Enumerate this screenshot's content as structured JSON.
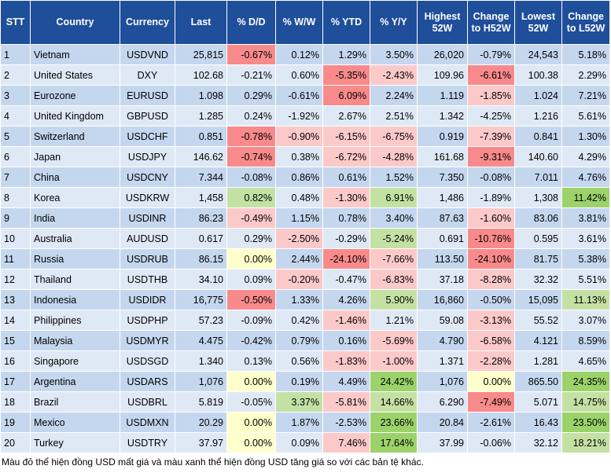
{
  "table": {
    "columns": [
      "STT",
      "Country",
      "Currency",
      "Last",
      "% D/D",
      "% W/W",
      "% YTD",
      "% Y/Y",
      "Highest 52W",
      "Change to H52W",
      "Lowest 52W",
      "Change to L52W"
    ],
    "rows": [
      [
        "1",
        "Vietnam",
        "USDVND",
        "25,815",
        "-0.67%",
        "0.12%",
        "1.29%",
        "3.50%",
        "26,020",
        "-0.79%",
        "24,543",
        "5.18%"
      ],
      [
        "2",
        "United States",
        "DXY",
        "102.68",
        "-0.21%",
        "0.60%",
        "-5.35%",
        "-2.43%",
        "109.96",
        "-6.61%",
        "100.38",
        "2.29%"
      ],
      [
        "3",
        "Eurozone",
        "EURUSD",
        "1.098",
        "0.29%",
        "-0.61%",
        "6.09%",
        "2.24%",
        "1.119",
        "-1.85%",
        "1.024",
        "7.21%"
      ],
      [
        "4",
        "United Kingdom",
        "GBPUSD",
        "1.285",
        "0.24%",
        "-1.92%",
        "2.67%",
        "2.51%",
        "1.342",
        "-4.25%",
        "1.216",
        "5.61%"
      ],
      [
        "5",
        "Switzerland",
        "USDCHF",
        "0.851",
        "-0.78%",
        "-0.90%",
        "-6.15%",
        "-6.75%",
        "0.919",
        "-7.39%",
        "0.841",
        "1.30%"
      ],
      [
        "6",
        "Japan",
        "USDJPY",
        "146.62",
        "-0.74%",
        "0.38%",
        "-6.72%",
        "-4.28%",
        "161.68",
        "-9.31%",
        "140.60",
        "4.29%"
      ],
      [
        "7",
        "China",
        "USDCNY",
        "7.344",
        "-0.08%",
        "0.86%",
        "0.61%",
        "1.52%",
        "7.350",
        "-0.08%",
        "7.011",
        "4.76%"
      ],
      [
        "8",
        "Korea",
        "USDKRW",
        "1,458",
        "0.82%",
        "0.48%",
        "-1.30%",
        "6.91%",
        "1,486",
        "-1.89%",
        "1,308",
        "11.42%"
      ],
      [
        "9",
        "India",
        "USDINR",
        "86.23",
        "-0.49%",
        "1.15%",
        "0.78%",
        "3.40%",
        "87.63",
        "-1.60%",
        "83.06",
        "3.81%"
      ],
      [
        "10",
        "Australia",
        "AUDUSD",
        "0.617",
        "0.29%",
        "-2.50%",
        "-0.29%",
        "-5.24%",
        "0.691",
        "-10.76%",
        "0.595",
        "3.61%"
      ],
      [
        "11",
        "Russia",
        "USDRUB",
        "86.15",
        "0.00%",
        "2.44%",
        "-24.10%",
        "-7.66%",
        "113.50",
        "-24.10%",
        "81.75",
        "5.38%"
      ],
      [
        "12",
        "Thailand",
        "USDTHB",
        "34.10",
        "0.09%",
        "-0.20%",
        "-0.47%",
        "-6.83%",
        "37.18",
        "-8.28%",
        "32.32",
        "5.51%"
      ],
      [
        "13",
        "Indonesia",
        "USDIDR",
        "16,775",
        "-0.50%",
        "1.33%",
        "4.26%",
        "5.90%",
        "16,860",
        "-0.50%",
        "15,095",
        "11.13%"
      ],
      [
        "14",
        "Philippines",
        "USDPHP",
        "57.23",
        "-0.09%",
        "0.42%",
        "-1.46%",
        "1.21%",
        "59.08",
        "-3.13%",
        "55.52",
        "3.07%"
      ],
      [
        "15",
        "Malaysia",
        "USDMYR",
        "4.475",
        "-0.42%",
        "0.79%",
        "0.16%",
        "-5.69%",
        "4.790",
        "-6.58%",
        "4.121",
        "8.59%"
      ],
      [
        "16",
        "Singapore",
        "USDSGD",
        "1.340",
        "0.13%",
        "0.56%",
        "-1.83%",
        "-1.00%",
        "1.371",
        "-2.28%",
        "1.281",
        "4.65%"
      ],
      [
        "17",
        "Argentina",
        "USDARS",
        "1,076",
        "0.00%",
        "0.19%",
        "4.49%",
        "24.42%",
        "1,076",
        "0.00%",
        "865.50",
        "24.35%"
      ],
      [
        "18",
        "Brazil",
        "USDBRL",
        "5.819",
        "-0.05%",
        "3.37%",
        "-5.81%",
        "14.66%",
        "6.290",
        "-7.49%",
        "5.071",
        "14.75%"
      ],
      [
        "19",
        "Mexico",
        "USDMXN",
        "20.29",
        "0.00%",
        "1.87%",
        "-2.53%",
        "23.66%",
        "20.84",
        "-2.61%",
        "16.43",
        "23.50%"
      ],
      [
        "20",
        "Turkey",
        "USDTRY",
        "37.97",
        "0.00%",
        "0.09%",
        "7.46%",
        "17.64%",
        "37.99",
        "-0.06%",
        "32.12",
        "18.21%"
      ]
    ],
    "cell_colors": [
      [
        null,
        null,
        null,
        null,
        "#f98a8b",
        null,
        null,
        null,
        null,
        null,
        null,
        null
      ],
      [
        null,
        null,
        null,
        null,
        null,
        null,
        "#f98a8b",
        "#fcc9c9",
        null,
        "#f98a8b",
        null,
        null
      ],
      [
        null,
        null,
        null,
        null,
        null,
        null,
        "#f98a8b",
        null,
        null,
        "#fcc9c9",
        null,
        null
      ],
      [
        null,
        null,
        null,
        null,
        null,
        null,
        null,
        null,
        null,
        null,
        null,
        null
      ],
      [
        null,
        null,
        null,
        null,
        "#f98a8b",
        "#fcc9c9",
        "#fcc9c9",
        "#fcc9c9",
        null,
        "#fcc9c9",
        null,
        null
      ],
      [
        null,
        null,
        null,
        null,
        "#f98a8b",
        null,
        "#fcc9c9",
        "#fcc9c9",
        null,
        "#f98a8b",
        null,
        null
      ],
      [
        null,
        null,
        null,
        null,
        null,
        null,
        null,
        null,
        null,
        null,
        null,
        null
      ],
      [
        null,
        null,
        null,
        null,
        "#c4e1a4",
        null,
        "#fcc9c9",
        "#c4e1a4",
        null,
        null,
        null,
        "#9bd36a"
      ],
      [
        null,
        null,
        null,
        null,
        "#fcc9c9",
        null,
        null,
        null,
        null,
        "#fcc9c9",
        null,
        null
      ],
      [
        null,
        null,
        null,
        null,
        null,
        "#fcc9c9",
        null,
        "#c4e1a4",
        null,
        "#f98a8b",
        null,
        null
      ],
      [
        null,
        null,
        null,
        null,
        "#ffffcc",
        null,
        "#f98a8b",
        "#fcc9c9",
        null,
        "#f98a8b",
        null,
        null
      ],
      [
        null,
        null,
        null,
        null,
        null,
        "#fcc9c9",
        null,
        "#fcc9c9",
        null,
        "#fcc9c9",
        null,
        null
      ],
      [
        null,
        null,
        null,
        null,
        "#f98a8b",
        null,
        null,
        "#c4e1a4",
        null,
        null,
        null,
        "#c4e1a4"
      ],
      [
        null,
        null,
        null,
        null,
        null,
        null,
        "#fcc9c9",
        null,
        null,
        "#fcc9c9",
        null,
        null
      ],
      [
        null,
        null,
        null,
        null,
        null,
        null,
        null,
        "#fcc9c9",
        null,
        "#fcc9c9",
        null,
        null
      ],
      [
        null,
        null,
        null,
        null,
        null,
        null,
        "#fcc9c9",
        "#fcc9c9",
        null,
        "#fcc9c9",
        null,
        null
      ],
      [
        null,
        null,
        null,
        null,
        "#ffffcc",
        null,
        null,
        "#9bd36a",
        null,
        "#ffffcc",
        null,
        "#9bd36a"
      ],
      [
        null,
        null,
        null,
        null,
        null,
        "#c4e1a4",
        "#fcc9c9",
        "#c4e1a4",
        null,
        "#f98a8b",
        null,
        "#c4e1a4"
      ],
      [
        null,
        null,
        null,
        null,
        "#ffffcc",
        null,
        null,
        "#9bd36a",
        null,
        null,
        null,
        "#9bd36a"
      ],
      [
        null,
        null,
        null,
        null,
        "#ffffcc",
        null,
        "#fcc9c9",
        "#9bd36a",
        null,
        null,
        null,
        "#c4e1a4"
      ]
    ]
  },
  "footnote": "Màu đỏ thể hiện đồng USD mất giá và màu xanh thể hiện đồng USD tăng giá so với các bản tệ khác."
}
